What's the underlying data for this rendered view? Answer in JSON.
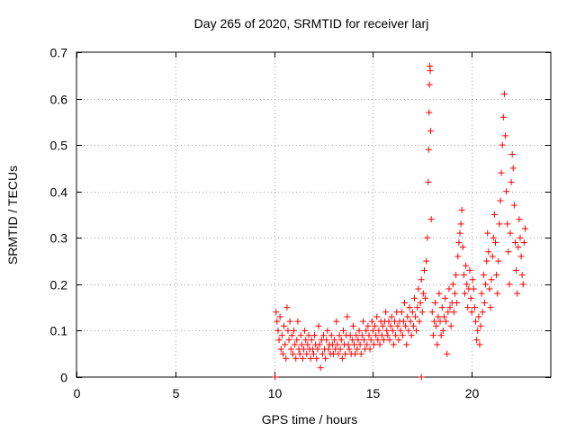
{
  "chart_data": {
    "type": "scatter",
    "title": "Day 265 of 2020, SRMTID for receiver larj",
    "xlabel": "GPS time / hours",
    "ylabel": "SRMTID / TECUs",
    "xlim": [
      0,
      24
    ],
    "ylim": [
      0,
      0.7
    ],
    "xticks": [
      0,
      5,
      10,
      15,
      20
    ],
    "xtick_labels": [
      "0",
      "5",
      "10",
      "15",
      "20"
    ],
    "yticks": [
      0,
      0.1,
      0.2,
      0.3,
      0.4,
      0.5,
      0.6,
      0.7
    ],
    "ytick_labels": [
      "0",
      "0.1",
      "0.2",
      "0.3",
      "0.4",
      "0.5",
      "0.6",
      "0.7"
    ],
    "grid": true,
    "legend": "none",
    "marker": "plus",
    "series": [
      {
        "name": "SRMTID",
        "color": "#ff0000",
        "points": [
          [
            10.05,
            0.0
          ],
          [
            17.45,
            0.0
          ],
          [
            10.1,
            0.14
          ],
          [
            10.15,
            0.12
          ],
          [
            10.2,
            0.1
          ],
          [
            10.25,
            0.08
          ],
          [
            10.3,
            0.13
          ],
          [
            10.35,
            0.06
          ],
          [
            10.4,
            0.09
          ],
          [
            10.45,
            0.05
          ],
          [
            10.5,
            0.11
          ],
          [
            10.55,
            0.07
          ],
          [
            10.6,
            0.04
          ],
          [
            10.65,
            0.15
          ],
          [
            10.7,
            0.1
          ],
          [
            10.75,
            0.08
          ],
          [
            10.8,
            0.12
          ],
          [
            10.85,
            0.06
          ],
          [
            10.9,
            0.09
          ],
          [
            10.95,
            0.05
          ],
          [
            11.0,
            0.1
          ],
          [
            11.05,
            0.07
          ],
          [
            11.1,
            0.04
          ],
          [
            11.15,
            0.08
          ],
          [
            11.2,
            0.12
          ],
          [
            11.25,
            0.06
          ],
          [
            11.3,
            0.05
          ],
          [
            11.35,
            0.09
          ],
          [
            11.4,
            0.07
          ],
          [
            11.45,
            0.04
          ],
          [
            11.5,
            0.06
          ],
          [
            11.55,
            0.1
          ],
          [
            11.6,
            0.08
          ],
          [
            11.65,
            0.05
          ],
          [
            11.7,
            0.07
          ],
          [
            11.75,
            0.09
          ],
          [
            11.8,
            0.06
          ],
          [
            11.85,
            0.04
          ],
          [
            11.9,
            0.08
          ],
          [
            11.95,
            0.06
          ],
          [
            12.0,
            0.05
          ],
          [
            12.05,
            0.09
          ],
          [
            12.1,
            0.07
          ],
          [
            12.15,
            0.04
          ],
          [
            12.2,
            0.06
          ],
          [
            12.25,
            0.11
          ],
          [
            12.3,
            0.07
          ],
          [
            12.35,
            0.02
          ],
          [
            12.4,
            0.08
          ],
          [
            12.45,
            0.05
          ],
          [
            12.5,
            0.09
          ],
          [
            12.55,
            0.06
          ],
          [
            12.6,
            0.04
          ],
          [
            12.65,
            0.08
          ],
          [
            12.7,
            0.1
          ],
          [
            12.75,
            0.06
          ],
          [
            12.8,
            0.07
          ],
          [
            12.85,
            0.05
          ],
          [
            12.9,
            0.09
          ],
          [
            12.95,
            0.07
          ],
          [
            13.0,
            0.05
          ],
          [
            13.05,
            0.08
          ],
          [
            13.1,
            0.06
          ],
          [
            13.15,
            0.12
          ],
          [
            13.2,
            0.07
          ],
          [
            13.25,
            0.05
          ],
          [
            13.3,
            0.09
          ],
          [
            13.35,
            0.06
          ],
          [
            13.4,
            0.08
          ],
          [
            13.45,
            0.04
          ],
          [
            13.5,
            0.1
          ],
          [
            13.55,
            0.07
          ],
          [
            13.6,
            0.05
          ],
          [
            13.65,
            0.09
          ],
          [
            13.7,
            0.13
          ],
          [
            13.75,
            0.07
          ],
          [
            13.8,
            0.06
          ],
          [
            13.85,
            0.09
          ],
          [
            13.9,
            0.05
          ],
          [
            13.95,
            0.08
          ],
          [
            14.0,
            0.11
          ],
          [
            14.05,
            0.07
          ],
          [
            14.1,
            0.05
          ],
          [
            14.15,
            0.09
          ],
          [
            14.2,
            0.06
          ],
          [
            14.25,
            0.08
          ],
          [
            14.3,
            0.1
          ],
          [
            14.35,
            0.07
          ],
          [
            14.4,
            0.05
          ],
          [
            14.45,
            0.09
          ],
          [
            14.5,
            0.12
          ],
          [
            14.55,
            0.08
          ],
          [
            14.6,
            0.06
          ],
          [
            14.65,
            0.1
          ],
          [
            14.7,
            0.07
          ],
          [
            14.75,
            0.11
          ],
          [
            14.8,
            0.09
          ],
          [
            14.85,
            0.06
          ],
          [
            14.9,
            0.08
          ],
          [
            14.95,
            0.12
          ],
          [
            15.0,
            0.1
          ],
          [
            15.05,
            0.07
          ],
          [
            15.1,
            0.11
          ],
          [
            15.15,
            0.09
          ],
          [
            15.2,
            0.13
          ],
          [
            15.25,
            0.08
          ],
          [
            15.3,
            0.1
          ],
          [
            15.35,
            0.07
          ],
          [
            15.4,
            0.12
          ],
          [
            15.45,
            0.09
          ],
          [
            15.5,
            0.11
          ],
          [
            15.55,
            0.08
          ],
          [
            15.6,
            0.12
          ],
          [
            15.65,
            0.14
          ],
          [
            15.7,
            0.1
          ],
          [
            15.75,
            0.09
          ],
          [
            15.8,
            0.12
          ],
          [
            15.85,
            0.08
          ],
          [
            15.9,
            0.11
          ],
          [
            15.95,
            0.13
          ],
          [
            16.0,
            0.1
          ],
          [
            16.05,
            0.07
          ],
          [
            16.1,
            0.12
          ],
          [
            16.15,
            0.09
          ],
          [
            16.2,
            0.14
          ],
          [
            16.25,
            0.11
          ],
          [
            16.3,
            0.08
          ],
          [
            16.35,
            0.12
          ],
          [
            16.4,
            0.1
          ],
          [
            16.45,
            0.14
          ],
          [
            16.5,
            0.09
          ],
          [
            16.55,
            0.12
          ],
          [
            16.6,
            0.16
          ],
          [
            16.65,
            0.11
          ],
          [
            16.7,
            0.07
          ],
          [
            16.75,
            0.13
          ],
          [
            16.8,
            0.1
          ],
          [
            16.85,
            0.15
          ],
          [
            16.9,
            0.12
          ],
          [
            16.95,
            0.09
          ],
          [
            17.0,
            0.14
          ],
          [
            17.05,
            0.11
          ],
          [
            17.1,
            0.17
          ],
          [
            17.15,
            0.13
          ],
          [
            17.2,
            0.1
          ],
          [
            17.25,
            0.15
          ],
          [
            17.3,
            0.19
          ],
          [
            17.35,
            0.12
          ],
          [
            17.4,
            0.16
          ],
          [
            17.45,
            0.21
          ],
          [
            17.5,
            0.14
          ],
          [
            17.55,
            0.18
          ],
          [
            17.6,
            0.23
          ],
          [
            17.65,
            0.17
          ],
          [
            17.7,
            0.25
          ],
          [
            17.75,
            0.3
          ],
          [
            17.8,
            0.42
          ],
          [
            17.82,
            0.49
          ],
          [
            17.84,
            0.57
          ],
          [
            17.86,
            0.63
          ],
          [
            17.88,
            0.67
          ],
          [
            17.9,
            0.66
          ],
          [
            17.92,
            0.53
          ],
          [
            17.95,
            0.34
          ],
          [
            18.0,
            0.14
          ],
          [
            18.05,
            0.09
          ],
          [
            18.1,
            0.12
          ],
          [
            18.15,
            0.16
          ],
          [
            18.2,
            0.11
          ],
          [
            18.25,
            0.07
          ],
          [
            18.3,
            0.13
          ],
          [
            18.35,
            0.18
          ],
          [
            18.4,
            0.12
          ],
          [
            18.45,
            0.09
          ],
          [
            18.5,
            0.15
          ],
          [
            18.55,
            0.1
          ],
          [
            18.6,
            0.13
          ],
          [
            18.65,
            0.17
          ],
          [
            18.7,
            0.12
          ],
          [
            18.75,
            0.05
          ],
          [
            18.8,
            0.14
          ],
          [
            18.85,
            0.19
          ],
          [
            18.9,
            0.15
          ],
          [
            18.95,
            0.11
          ],
          [
            19.0,
            0.16
          ],
          [
            19.05,
            0.2
          ],
          [
            19.1,
            0.14
          ],
          [
            19.15,
            0.18
          ],
          [
            19.2,
            0.22
          ],
          [
            19.25,
            0.16
          ],
          [
            19.3,
            0.26
          ],
          [
            19.35,
            0.29
          ],
          [
            19.4,
            0.31
          ],
          [
            19.45,
            0.33
          ],
          [
            19.5,
            0.36
          ],
          [
            19.55,
            0.28
          ],
          [
            19.6,
            0.22
          ],
          [
            19.65,
            0.18
          ],
          [
            19.7,
            0.24
          ],
          [
            19.75,
            0.2
          ],
          [
            19.8,
            0.15
          ],
          [
            19.85,
            0.19
          ],
          [
            19.9,
            0.23
          ],
          [
            19.95,
            0.17
          ],
          [
            20.0,
            0.14
          ],
          [
            20.05,
            0.21
          ],
          [
            20.1,
            0.19
          ],
          [
            20.15,
            0.15
          ],
          [
            20.2,
            0.12
          ],
          [
            20.25,
            0.08
          ],
          [
            20.3,
            0.1
          ],
          [
            20.35,
            0.13
          ],
          [
            20.4,
            0.07
          ],
          [
            20.45,
            0.11
          ],
          [
            20.5,
            0.18
          ],
          [
            20.55,
            0.14
          ],
          [
            20.6,
            0.22
          ],
          [
            20.65,
            0.16
          ],
          [
            20.7,
            0.2
          ],
          [
            20.75,
            0.25
          ],
          [
            20.8,
            0.31
          ],
          [
            20.85,
            0.27
          ],
          [
            20.9,
            0.19
          ],
          [
            20.95,
            0.15
          ],
          [
            21.0,
            0.21
          ],
          [
            21.05,
            0.26
          ],
          [
            21.1,
            0.3
          ],
          [
            21.15,
            0.35
          ],
          [
            21.2,
            0.29
          ],
          [
            21.25,
            0.22
          ],
          [
            21.3,
            0.18
          ],
          [
            21.35,
            0.25
          ],
          [
            21.4,
            0.33
          ],
          [
            21.45,
            0.38
          ],
          [
            21.5,
            0.44
          ],
          [
            21.55,
            0.5
          ],
          [
            21.6,
            0.56
          ],
          [
            21.65,
            0.61
          ],
          [
            21.7,
            0.52
          ],
          [
            21.75,
            0.4
          ],
          [
            21.8,
            0.33
          ],
          [
            21.85,
            0.27
          ],
          [
            21.9,
            0.2
          ],
          [
            21.95,
            0.31
          ],
          [
            22.0,
            0.42
          ],
          [
            22.05,
            0.48
          ],
          [
            22.1,
            0.45
          ],
          [
            22.15,
            0.37
          ],
          [
            22.2,
            0.29
          ],
          [
            22.25,
            0.23
          ],
          [
            22.3,
            0.18
          ],
          [
            22.35,
            0.28
          ],
          [
            22.4,
            0.34
          ],
          [
            22.45,
            0.3
          ],
          [
            22.5,
            0.26
          ],
          [
            22.55,
            0.22
          ],
          [
            22.6,
            0.2
          ],
          [
            22.65,
            0.29
          ],
          [
            22.7,
            0.32
          ]
        ]
      }
    ]
  }
}
